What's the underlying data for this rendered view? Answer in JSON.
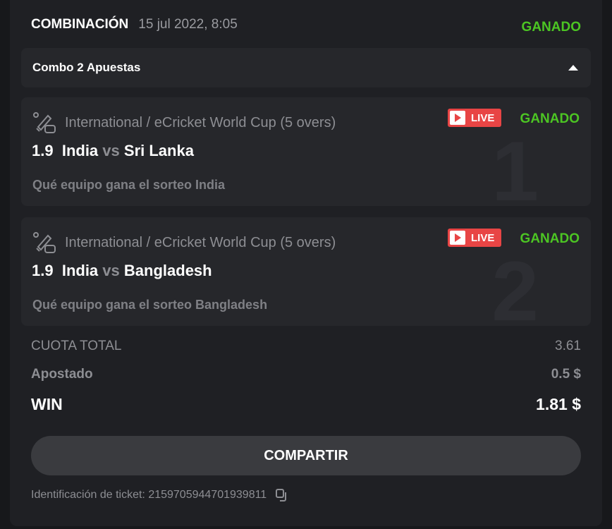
{
  "header": {
    "title": "COMBINACIÓN",
    "date": "15 jul 2022, 8:05",
    "status": "GANADO"
  },
  "combo": {
    "label": "Combo 2 Apuestas",
    "expanded": true
  },
  "bets": [
    {
      "number": "1",
      "league": "International / eCricket World Cup (5 overs)",
      "odds": "1.9",
      "home": "India",
      "vs": "vs",
      "away": "Sri Lanka",
      "market": "Qué equipo gana el sorteo India",
      "live": "LIVE",
      "status": "GANADO"
    },
    {
      "number": "2",
      "league": "International / eCricket World Cup (5 overs)",
      "odds": "1.9",
      "home": "India",
      "vs": "vs",
      "away": "Bangladesh",
      "market": "Qué equipo gana el sorteo Bangladesh",
      "live": "LIVE",
      "status": "GANADO"
    }
  ],
  "summary": {
    "total_odds_label": "CUOTA TOTAL",
    "total_odds": "3.61",
    "stake_label": "Apostado",
    "stake": "0.5 $",
    "win_label": "WIN",
    "win": "1.81 $"
  },
  "share_label": "COMPARTIR",
  "ticket": {
    "label": "Identificación de ticket: 215970594470193981 1",
    "id_text": "Identificación de ticket: 2159705944701939811"
  },
  "colors": {
    "won": "#4cc523",
    "live": "#e84545"
  }
}
